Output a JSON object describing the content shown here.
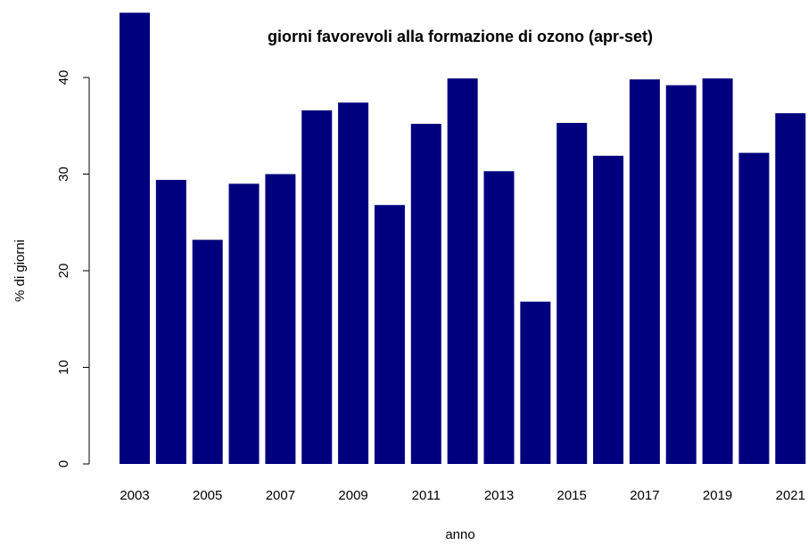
{
  "chart_data": {
    "type": "bar",
    "title": "giorni favorevoli alla formazione di ozono (apr-set)",
    "xlabel": "anno",
    "ylabel": "% di giorni",
    "ylim": [
      0,
      47
    ],
    "yticks": [
      0,
      10,
      20,
      30,
      40
    ],
    "categories": [
      "2003",
      "2004",
      "2005",
      "2006",
      "2007",
      "2008",
      "2009",
      "2010",
      "2011",
      "2012",
      "2013",
      "2014",
      "2015",
      "2016",
      "2017",
      "2018",
      "2019",
      "2020",
      "2021"
    ],
    "xtick_labels_shown": [
      "2003",
      "2005",
      "2007",
      "2009",
      "2011",
      "2013",
      "2015",
      "2017",
      "2019",
      "2021"
    ],
    "values": [
      46.7,
      29.4,
      23.2,
      29.0,
      30.0,
      36.6,
      37.4,
      26.8,
      35.2,
      39.9,
      30.3,
      16.8,
      35.3,
      31.9,
      39.8,
      39.2,
      39.9,
      32.2,
      36.3
    ],
    "bar_color": "#00007F",
    "grid": false,
    "legend": "none"
  }
}
